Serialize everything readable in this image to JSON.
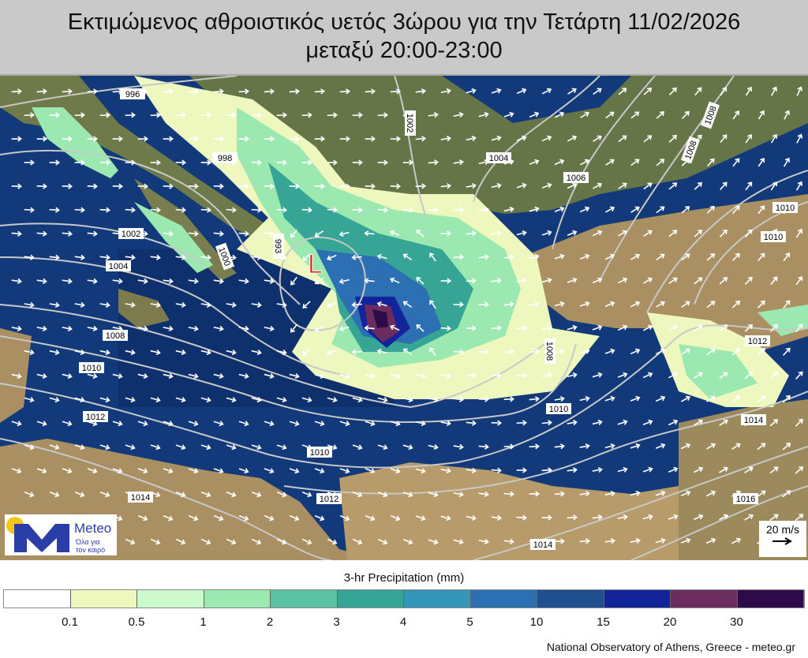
{
  "title": {
    "line1": "Εκτιμώμενος αθροιστικός υετός 3ώρου για την Τετάρτη 11/02/2026",
    "line2": "μεταξύ 20:00-23:00"
  },
  "map": {
    "low_marker": "L",
    "isobar_labels": [
      "996",
      "998",
      "1002",
      "1004",
      "1006",
      "1008",
      "1008",
      "1010",
      "1010",
      "1002",
      "1004",
      "1000",
      "993",
      "1008",
      "1010",
      "1012",
      "1014",
      "1012",
      "1010",
      "1010",
      "1008",
      "1012",
      "1014",
      "1016",
      "1014"
    ],
    "colors": {
      "sea": "#123a7a",
      "land": "#a98f62",
      "isobar": "#c8c8c8",
      "wind_arrow": "#ffffff",
      "low_marker": "#e01818"
    }
  },
  "logo": {
    "brand": "Meteo",
    "tagline_1": "Όλα για",
    "tagline_2": "τον καιρό",
    "colors": {
      "sun": "#f5c518",
      "m": "#2a3ea8"
    }
  },
  "wind_scale": {
    "label": "20 m/s",
    "icon": "arrow-right-icon"
  },
  "legend": {
    "title": "3-hr Precipitation (mm)",
    "colors": [
      "#ffffff",
      "#eef8be",
      "#ccfacc",
      "#9be9b0",
      "#5bc3a3",
      "#36a595",
      "#3496b8",
      "#2c6fb3",
      "#1f4f8c",
      "#13239a",
      "#6b2c5e",
      "#2d0a4a"
    ],
    "ticks": [
      "0.1",
      "0.5",
      "1",
      "2",
      "3",
      "4",
      "5",
      "10",
      "15",
      "20",
      "30"
    ]
  },
  "credit": "National Observatory of Athens, Greece - meteo.gr"
}
